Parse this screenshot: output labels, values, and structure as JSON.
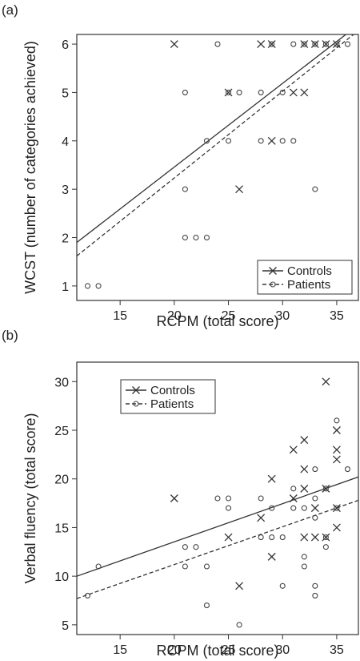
{
  "chart_data": [
    {
      "panel_label": "(a)",
      "type": "scatter",
      "xlabel": "RCPM (total score)",
      "ylabel": "WCST (number of categories achieved)",
      "xlim": [
        11,
        37
      ],
      "ylim": [
        0.7,
        6.2
      ],
      "xticks": [
        15,
        20,
        25,
        30,
        35
      ],
      "yticks": [
        1,
        2,
        3,
        4,
        5,
        6
      ],
      "legend_position": "lower-right",
      "series": [
        {
          "name": "Controls",
          "marker": "x",
          "line_style": "solid",
          "points": [
            [
              20,
              6
            ],
            [
              25,
              5
            ],
            [
              26,
              3
            ],
            [
              28,
              6
            ],
            [
              29,
              6
            ],
            [
              29,
              4
            ],
            [
              31,
              5
            ],
            [
              32,
              5
            ],
            [
              32,
              6
            ],
            [
              33,
              6
            ],
            [
              34,
              6
            ],
            [
              35,
              6
            ]
          ],
          "fit_line": [
            [
              11,
              1.9
            ],
            [
              37,
              6.4
            ]
          ]
        },
        {
          "name": "Patients",
          "marker": "circle",
          "line_style": "dashed",
          "points": [
            [
              12,
              1
            ],
            [
              13,
              1
            ],
            [
              21,
              5
            ],
            [
              21,
              3
            ],
            [
              21,
              2
            ],
            [
              22,
              2
            ],
            [
              23,
              2
            ],
            [
              23,
              4
            ],
            [
              24,
              6
            ],
            [
              25,
              5
            ],
            [
              25,
              4
            ],
            [
              26,
              5
            ],
            [
              28,
              5
            ],
            [
              28,
              4
            ],
            [
              29,
              6
            ],
            [
              30,
              4
            ],
            [
              30,
              5
            ],
            [
              31,
              4
            ],
            [
              31,
              6
            ],
            [
              32,
              6
            ],
            [
              33,
              3
            ],
            [
              33,
              6
            ],
            [
              34,
              6
            ],
            [
              35,
              6
            ],
            [
              36,
              6
            ]
          ],
          "fit_line": [
            [
              11,
              1.62
            ],
            [
              37,
              6.28
            ]
          ]
        }
      ]
    },
    {
      "panel_label": "(b)",
      "type": "scatter",
      "xlabel": "RCPM (total score)",
      "ylabel": "Verbal fluency (total score)",
      "xlim": [
        11,
        37
      ],
      "ylim": [
        4,
        32
      ],
      "xticks": [
        15,
        20,
        25,
        30,
        35
      ],
      "yticks": [
        5,
        10,
        15,
        20,
        25,
        30
      ],
      "legend_position": "top-left",
      "series": [
        {
          "name": "Controls",
          "marker": "x",
          "line_style": "solid",
          "points": [
            [
              20,
              18
            ],
            [
              25,
              14
            ],
            [
              26,
              9
            ],
            [
              28,
              16
            ],
            [
              29,
              20
            ],
            [
              29,
              12
            ],
            [
              31,
              23
            ],
            [
              31,
              18
            ],
            [
              32,
              24
            ],
            [
              32,
              21
            ],
            [
              32,
              19
            ],
            [
              32,
              14
            ],
            [
              33,
              17
            ],
            [
              33,
              14
            ],
            [
              34,
              30
            ],
            [
              34,
              19
            ],
            [
              34,
              14
            ],
            [
              35,
              25
            ],
            [
              35,
              23
            ],
            [
              35,
              22
            ],
            [
              35,
              17
            ],
            [
              35,
              15
            ]
          ],
          "fit_line": [
            [
              11,
              10
            ],
            [
              37,
              20.2
            ]
          ]
        },
        {
          "name": "Patients",
          "marker": "circle",
          "line_style": "dashed",
          "points": [
            [
              12,
              8
            ],
            [
              13,
              11
            ],
            [
              21,
              13
            ],
            [
              21,
              11
            ],
            [
              22,
              13
            ],
            [
              23,
              11
            ],
            [
              23,
              7
            ],
            [
              24,
              18
            ],
            [
              25,
              18
            ],
            [
              25,
              17
            ],
            [
              26,
              5
            ],
            [
              28,
              18
            ],
            [
              28,
              14
            ],
            [
              29,
              17
            ],
            [
              29,
              14
            ],
            [
              30,
              14
            ],
            [
              30,
              9
            ],
            [
              31,
              19
            ],
            [
              31,
              17
            ],
            [
              32,
              17
            ],
            [
              32,
              12
            ],
            [
              32,
              11
            ],
            [
              33,
              21
            ],
            [
              33,
              18
            ],
            [
              33,
              16
            ],
            [
              33,
              9
            ],
            [
              33,
              8
            ],
            [
              34,
              19
            ],
            [
              34,
              14
            ],
            [
              34,
              13
            ],
            [
              35,
              26
            ],
            [
              35,
              17
            ],
            [
              36,
              21
            ]
          ],
          "fit_line": [
            [
              11,
              7.7
            ],
            [
              37,
              17.8
            ]
          ]
        }
      ]
    }
  ]
}
